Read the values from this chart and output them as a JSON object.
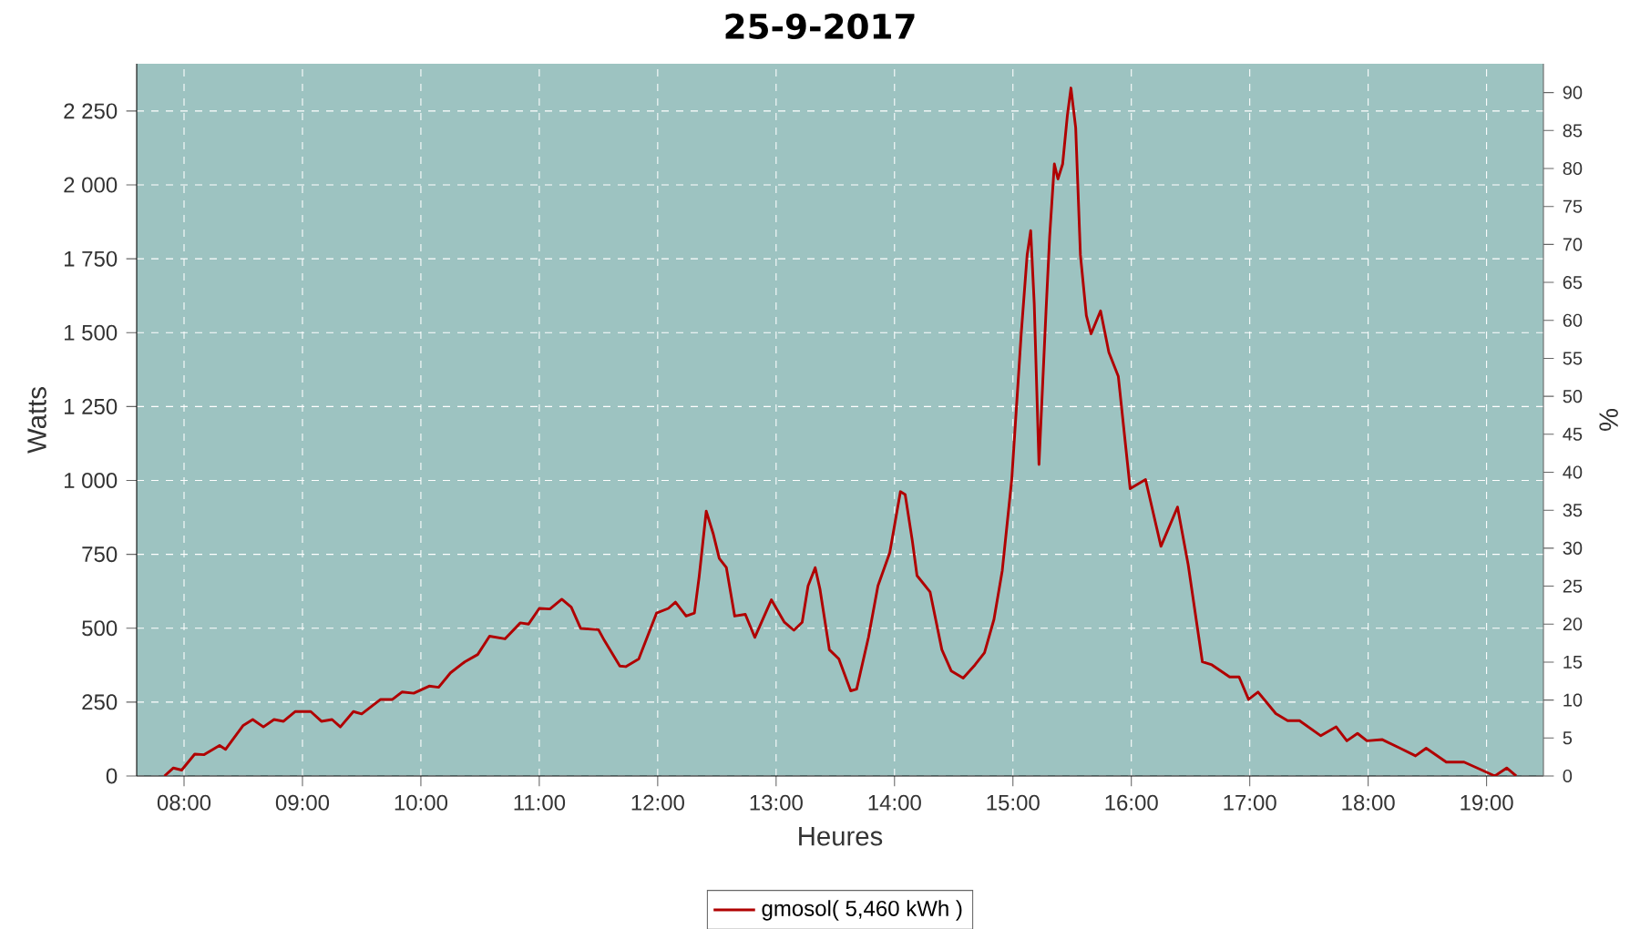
{
  "chart_data": {
    "type": "line",
    "title": "25-9-2017",
    "xlabel": "Heures",
    "ylabel": "Watts",
    "y2label": "%",
    "x": [
      7.835,
      7.91,
      7.98,
      8.09,
      8.17,
      8.3,
      8.35,
      8.5,
      8.58,
      8.67,
      8.76,
      8.84,
      8.94,
      9.07,
      9.16,
      9.25,
      9.32,
      9.43,
      9.5,
      9.66,
      9.76,
      9.84,
      9.94,
      10.07,
      10.15,
      10.25,
      10.37,
      10.48,
      10.58,
      10.71,
      10.84,
      10.91,
      11.0,
      11.09,
      11.19,
      11.27,
      11.35,
      11.5,
      11.55,
      11.68,
      11.73,
      11.84,
      11.99,
      12.09,
      12.15,
      12.24,
      12.31,
      12.35,
      12.41,
      12.47,
      12.52,
      12.58,
      12.65,
      12.74,
      12.82,
      12.96,
      13.07,
      13.15,
      13.22,
      13.27,
      13.33,
      13.37,
      13.45,
      13.53,
      13.63,
      13.68,
      13.78,
      13.86,
      13.96,
      14.05,
      14.09,
      14.15,
      14.19,
      14.3,
      14.4,
      14.48,
      14.58,
      14.68,
      14.76,
      14.84,
      14.91,
      14.99,
      15.07,
      15.12,
      15.15,
      15.18,
      15.22,
      15.28,
      15.31,
      15.35,
      15.38,
      15.42,
      15.46,
      15.49,
      15.53,
      15.57,
      15.62,
      15.66,
      15.74,
      15.81,
      15.89,
      15.99,
      16.12,
      16.25,
      16.39,
      16.48,
      16.6,
      16.68,
      16.83,
      16.91,
      16.99,
      17.07,
      17.22,
      17.32,
      17.42,
      17.6,
      17.73,
      17.82,
      17.91,
      17.99,
      18.12,
      18.27,
      18.4,
      18.49,
      18.66,
      18.81,
      18.96,
      19.07,
      19.17,
      19.25
    ],
    "series": [
      {
        "name": "gmosol( 5,460 kWh )",
        "color": "#b00000",
        "values": [
          0,
          27,
          20,
          74,
          72,
          103,
          90,
          171,
          191,
          166,
          191,
          185,
          218,
          218,
          185,
          191,
          166,
          218,
          210,
          259,
          259,
          284,
          280,
          304,
          300,
          349,
          386,
          411,
          473,
          464,
          518,
          514,
          567,
          565,
          598,
          571,
          499,
          495,
          458,
          372,
          370,
          396,
          551,
          567,
          588,
          541,
          551,
          674,
          896,
          818,
          736,
          705,
          541,
          547,
          469,
          596,
          520,
          493,
          520,
          643,
          705,
          633,
          427,
          396,
          288,
          294,
          469,
          643,
          756,
          962,
          952,
          797,
          678,
          623,
          427,
          355,
          331,
          376,
          417,
          530,
          695,
          1003,
          1496,
          1763,
          1845,
          1598,
          1054,
          1578,
          1825,
          2071,
          2020,
          2071,
          2236,
          2328,
          2194,
          1763,
          1558,
          1496,
          1574,
          1434,
          1352,
          972,
          1003,
          777,
          910,
          715,
          386,
          376,
          335,
          335,
          259,
          284,
          211,
          187,
          187,
          136,
          166,
          119,
          144,
          119,
          123,
          94,
          68,
          94,
          47,
          47,
          20,
          0,
          27,
          0
        ]
      }
    ],
    "xlim": [
      7.6,
      19.48
    ],
    "xticks": [
      {
        "value": 8,
        "label": "08:00"
      },
      {
        "value": 9,
        "label": "09:00"
      },
      {
        "value": 10,
        "label": "10:00"
      },
      {
        "value": 11,
        "label": "11:00"
      },
      {
        "value": 12,
        "label": "12:00"
      },
      {
        "value": 13,
        "label": "13:00"
      },
      {
        "value": 14,
        "label": "14:00"
      },
      {
        "value": 15,
        "label": "15:00"
      },
      {
        "value": 16,
        "label": "16:00"
      },
      {
        "value": 17,
        "label": "17:00"
      },
      {
        "value": 18,
        "label": "18:00"
      },
      {
        "value": 19,
        "label": "19:00"
      }
    ],
    "ylim": [
      0,
      2410
    ],
    "yticks": [
      0,
      250,
      500,
      750,
      {
        "value": 1000,
        "label": "1 000"
      },
      {
        "value": 1250,
        "label": "1 250"
      },
      {
        "value": 1500,
        "label": "1 500"
      },
      {
        "value": 1750,
        "label": "1 750"
      },
      {
        "value": 2000,
        "label": "2 000"
      },
      {
        "value": 2250,
        "label": "2 250"
      }
    ],
    "y2lim": [
      0,
      93.8
    ],
    "y2ticks": [
      0,
      5,
      10,
      15,
      20,
      25,
      30,
      35,
      40,
      45,
      50,
      55,
      60,
      65,
      70,
      75,
      80,
      85,
      90
    ],
    "grid": true,
    "legend": "bottom",
    "line_style": "solid"
  }
}
